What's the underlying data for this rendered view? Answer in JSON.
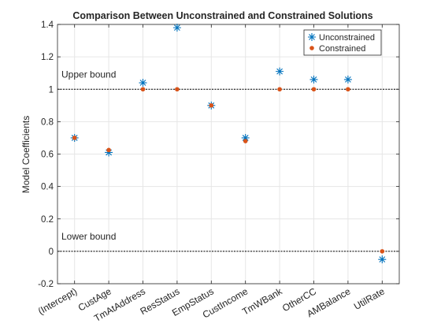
{
  "chart_data": {
    "type": "scatter",
    "title": "Comparison Between Unconstrained and Constrained Solutions",
    "xlabel": "",
    "ylabel": "Model Coefficients",
    "categories": [
      "(Intercept)",
      "CustAge",
      "TmAtAddress",
      "ResStatus",
      "EmpStatus",
      "CustIncome",
      "TmWBank",
      "OtherCC",
      "AMBalance",
      "UtilRate"
    ],
    "ylim": [
      -0.2,
      1.4
    ],
    "yticks": [
      "-0.2",
      "0",
      "0.2",
      "0.4",
      "0.6",
      "0.8",
      "1",
      "1.2",
      "1.4"
    ],
    "ytick_values": [
      -0.2,
      0,
      0.2,
      0.4,
      0.6,
      0.8,
      1,
      1.2,
      1.4
    ],
    "grid": true,
    "legend_location": "top-right",
    "series": [
      {
        "name": "Unconstrained",
        "marker": "asterisk",
        "color": "#0072BD",
        "values": [
          0.7,
          0.61,
          1.04,
          1.38,
          0.9,
          0.7,
          1.11,
          1.06,
          1.06,
          -0.05
        ]
      },
      {
        "name": "Constrained",
        "marker": "dot",
        "color": "#D95319",
        "values": [
          0.7,
          0.625,
          1.0,
          1.0,
          0.9,
          0.68,
          1.0,
          1.0,
          1.0,
          0.0
        ]
      }
    ],
    "reference_lines": [
      {
        "label": "Upper bound",
        "y": 1
      },
      {
        "label": "Lower bound",
        "y": 0
      }
    ]
  }
}
